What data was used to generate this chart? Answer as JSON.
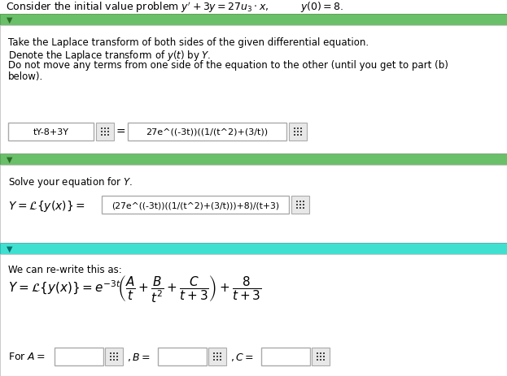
{
  "title_text": "Consider the initial value problem $y^{\\prime} + 3y = 27u_3 \\cdot x$,          $y(0) = 8$.",
  "section1_header_color": "#6abf69",
  "section2_header_color": "#6abf69",
  "section3_header_color": "#40e0d0",
  "bg_color": "#ffffff",
  "text_color": "#000000",
  "section1_instructions": [
    "Take the Laplace transform of both sides of the given differential equation.",
    "Denote the Laplace transform of $y(t)$ by $Y$.",
    "Do not move any terms from one side of the equation to the other (until you get to part (b)",
    "below)."
  ],
  "box1_left": "tY-8+3Y",
  "box1_right": "27e^((-3t))((1/(t^2)+(3/t))",
  "section2_instruction": "Solve your equation for $Y$.",
  "box2_content": "(27e^((-3t))((1/(t^2)+(3/t)))+8)/(t+3)",
  "section3_instruction": "We can re-write this as:",
  "input_box_border": "#aaaaaa",
  "grid_icon_color": "#444444",
  "green_header_color": "#6abf69",
  "cyan_header_color": "#40e0d0"
}
